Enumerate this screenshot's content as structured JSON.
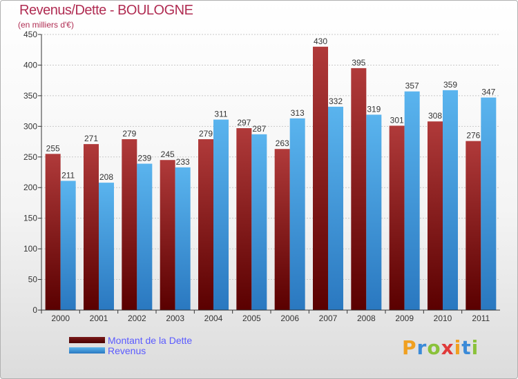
{
  "header": {
    "title": "Revenus/Dette - BOULOGNE",
    "subtitle": "(en milliers d'€)"
  },
  "legend": {
    "items": [
      {
        "label": "Montant de la Dette",
        "color": "#7a1a1a"
      },
      {
        "label": "Revenus",
        "color": "#4aa8e8"
      }
    ]
  },
  "logo": {
    "letters": [
      "P",
      "r",
      "o",
      "x",
      "i",
      "t",
      "i"
    ],
    "colors": [
      "#f0a020",
      "#3a8ad8",
      "#8ac23a",
      "#e03a3a",
      "#f0a020",
      "#3a8ad8",
      "#8ac23a"
    ]
  },
  "chart_data": {
    "type": "bar",
    "title": "Revenus/Dette - BOULOGNE",
    "subtitle": "(en milliers d'€)",
    "xlabel": "",
    "ylabel": "",
    "ylim": [
      0,
      450
    ],
    "yticks": [
      0,
      50,
      100,
      150,
      200,
      250,
      300,
      350,
      400,
      450
    ],
    "grid": true,
    "categories": [
      "2000",
      "2001",
      "2002",
      "2003",
      "2004",
      "2005",
      "2006",
      "2007",
      "2008",
      "2009",
      "2010",
      "2011"
    ],
    "series": [
      {
        "name": "Montant de la Dette",
        "color": "#7a1a1a",
        "values": [
          255,
          271,
          279,
          245,
          279,
          297,
          263,
          430,
          395,
          301,
          308,
          276
        ]
      },
      {
        "name": "Revenus",
        "color": "#4aa8e8",
        "values": [
          211,
          208,
          239,
          233,
          311,
          287,
          313,
          332,
          319,
          357,
          359,
          347
        ]
      }
    ]
  }
}
